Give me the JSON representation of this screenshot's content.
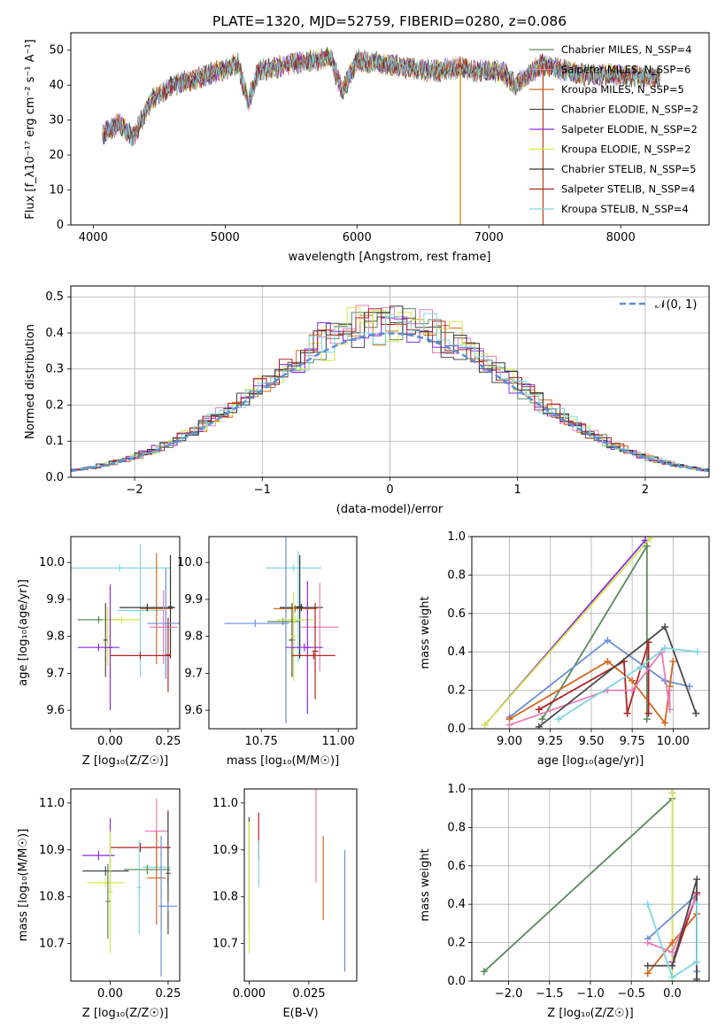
{
  "colors": [
    "#5a8a5a",
    "#e67fb5",
    "#d2691e",
    "#4a4a4a",
    "#8a2be2",
    "#d4e84a",
    "#333333",
    "#b22222",
    "#7fd7e0",
    "#6a8fd8"
  ],
  "chart_data": [
    {
      "id": "spectrum",
      "type": "line",
      "title": "PLATE=1320, MJD=52759, FIBERID=0280, z=0.086",
      "xlabel": "wavelength [Angstrom, rest frame]",
      "ylabel": "Flux [f_λ10⁻¹⁷ erg cm⁻² s⁻¹ A⁻¹]",
      "xlim": [
        3830,
        8670
      ],
      "ylim": [
        0,
        55
      ],
      "xticks": [
        4000,
        5000,
        6000,
        7000,
        8000
      ],
      "yticks": [
        0,
        10,
        20,
        30,
        40,
        50
      ],
      "continuum": [
        [
          4070,
          26
        ],
        [
          4200,
          29
        ],
        [
          4300,
          25
        ],
        [
          4450,
          36
        ],
        [
          4600,
          40
        ],
        [
          4800,
          42
        ],
        [
          4950,
          44
        ],
        [
          5100,
          46
        ],
        [
          5175,
          35
        ],
        [
          5250,
          44
        ],
        [
          5500,
          46
        ],
        [
          5800,
          48
        ],
        [
          5890,
          38
        ],
        [
          6000,
          47
        ],
        [
          6200,
          46
        ],
        [
          6563,
          44
        ],
        [
          6800,
          45
        ],
        [
          6900,
          44
        ],
        [
          7100,
          44
        ],
        [
          7200,
          40
        ],
        [
          7400,
          46
        ],
        [
          7700,
          43
        ],
        [
          8000,
          43
        ],
        [
          8300,
          42
        ]
      ],
      "series": [
        {
          "name": "Chabrier MILES, N_SSP=4",
          "color_idx": 0
        },
        {
          "name": "Salpeter MILES, N_SSP=6",
          "color_idx": 1
        },
        {
          "name": "Kroupa MILES, N_SSP=5",
          "color_idx": 2
        },
        {
          "name": "Chabrier ELODIE, N_SSP=2",
          "color_idx": 3
        },
        {
          "name": "Salpeter ELODIE, N_SSP=2",
          "color_idx": 4
        },
        {
          "name": "Kroupa ELODIE, N_SSP=2",
          "color_idx": 5
        },
        {
          "name": "Chabrier STELIB, N_SSP=5",
          "color_idx": 6
        },
        {
          "name": "Salpeter STELIB, N_SSP=4",
          "color_idx": 7
        },
        {
          "name": "Kroupa STELIB, N_SSP=4",
          "color_idx": 8
        }
      ],
      "legend_loc": "upper right"
    },
    {
      "id": "residuals",
      "type": "line",
      "xlabel": "(data-model)/error",
      "ylabel": "Normed distribution",
      "xlim": [
        -2.5,
        2.5
      ],
      "ylim": [
        0,
        0.53
      ],
      "xticks": [
        -2,
        -1,
        0,
        1,
        2
      ],
      "yticks": [
        0.0,
        0.1,
        0.2,
        0.3,
        0.4,
        0.5
      ],
      "grid": true,
      "legend": "𝒩(0, 1)",
      "legend_loc": "upper right",
      "gaussian": {
        "mean": 0,
        "sigma": 1,
        "style": "dashed",
        "color": "#5b8ed8"
      }
    },
    {
      "id": "age_vs_Z",
      "type": "scatter",
      "xlabel": "Z [log₁₀(Z/Z☉)]",
      "ylabel": "age  [log₁₀(age/yr)]",
      "xlim": [
        -0.17,
        0.3
      ],
      "ylim": [
        9.55,
        10.07
      ],
      "xticks": [
        0.0,
        0.25
      ],
      "yticks": [
        9.6,
        9.7,
        9.8,
        9.9,
        10.0
      ],
      "points": [
        {
          "x": 0.04,
          "y": 9.985,
          "xerr": 0.22,
          "yerr": 0.01,
          "c": 8
        },
        {
          "x": 0.13,
          "y": 9.87,
          "xerr": 0.1,
          "yerr": 0.18,
          "c": 8
        },
        {
          "x": 0.2,
          "y": 9.875,
          "xerr": 0.07,
          "yerr": 0.15,
          "c": 2
        },
        {
          "x": 0.16,
          "y": 9.878,
          "xerr": 0.12,
          "yerr": 0.01,
          "c": 6
        },
        {
          "x": 0.26,
          "y": 9.88,
          "xerr": 0.01,
          "yerr": 0.14,
          "c": 6
        },
        {
          "x": 0.24,
          "y": 9.835,
          "xerr": 0.08,
          "yerr": 0.15,
          "c": 9
        },
        {
          "x": 0.23,
          "y": 9.825,
          "xerr": 0.06,
          "yerr": 0.1,
          "c": 1
        },
        {
          "x": -0.05,
          "y": 9.845,
          "xerr": 0.09,
          "yerr": 0.01,
          "c": 0
        },
        {
          "x": 0.05,
          "y": 9.845,
          "xerr": 0.08,
          "yerr": 0.01,
          "c": 5
        },
        {
          "x": -0.02,
          "y": 9.79,
          "xerr": 0.01,
          "yerr": 0.1,
          "c": 3
        },
        {
          "x": -0.01,
          "y": 9.8,
          "xerr": 0.01,
          "yerr": 0.08,
          "c": 5
        },
        {
          "x": -0.05,
          "y": 9.77,
          "xerr": 0.09,
          "yerr": 0.01,
          "c": 4
        },
        {
          "x": 0.0,
          "y": 9.77,
          "xerr": 0.01,
          "yerr": 0.17,
          "c": 4
        },
        {
          "x": 0.13,
          "y": 9.748,
          "xerr": 0.13,
          "yerr": 0.01,
          "c": 7
        },
        {
          "x": 0.25,
          "y": 9.75,
          "xerr": 0.01,
          "yerr": 0.1,
          "c": 7
        }
      ]
    },
    {
      "id": "age_vs_mass",
      "type": "scatter",
      "xlabel": "mass [log₁₀(M/M☉)]",
      "ylabel": "",
      "xlim": [
        10.58,
        11.06
      ],
      "ylim": [
        9.55,
        10.07
      ],
      "xticks": [
        10.75,
        11.0
      ],
      "yticks": [
        9.6,
        9.7,
        9.8,
        9.9,
        10.0
      ],
      "points": [
        {
          "x": 10.855,
          "y": 9.985,
          "xerr": 0.09,
          "yerr": 0.01,
          "c": 8
        },
        {
          "x": 10.87,
          "y": 9.88,
          "xerr": 0.01,
          "yerr": 0.15,
          "c": 8
        },
        {
          "x": 10.86,
          "y": 9.875,
          "xerr": 0.07,
          "yerr": 0.01,
          "c": 2
        },
        {
          "x": 10.88,
          "y": 9.878,
          "xerr": 0.07,
          "yerr": 0.01,
          "c": 6
        },
        {
          "x": 10.875,
          "y": 9.88,
          "xerr": 0.01,
          "yerr": 0.14,
          "c": 6
        },
        {
          "x": 10.73,
          "y": 9.835,
          "xerr": 0.1,
          "yerr": 0.01,
          "c": 9
        },
        {
          "x": 10.83,
          "y": 9.835,
          "xerr": 0.01,
          "yerr": 0.27,
          "c": 9
        },
        {
          "x": 10.94,
          "y": 9.825,
          "xerr": 0.06,
          "yerr": 0.12,
          "c": 1
        },
        {
          "x": 10.82,
          "y": 9.84,
          "xerr": 0.05,
          "yerr": 0.01,
          "c": 0
        },
        {
          "x": 10.86,
          "y": 9.845,
          "xerr": 0.06,
          "yerr": 0.01,
          "c": 5
        },
        {
          "x": 10.85,
          "y": 9.79,
          "xerr": 0.01,
          "yerr": 0.1,
          "c": 3
        },
        {
          "x": 10.855,
          "y": 9.8,
          "xerr": 0.01,
          "yerr": 0.12,
          "c": 5
        },
        {
          "x": 10.89,
          "y": 9.77,
          "xerr": 0.06,
          "yerr": 0.01,
          "c": 4
        },
        {
          "x": 10.9,
          "y": 9.77,
          "xerr": 0.01,
          "yerr": 0.18,
          "c": 4
        },
        {
          "x": 10.92,
          "y": 9.748,
          "xerr": 0.07,
          "yerr": 0.01,
          "c": 7
        },
        {
          "x": 10.925,
          "y": 9.76,
          "xerr": 0.01,
          "yerr": 0.13,
          "c": 7
        }
      ]
    },
    {
      "id": "weight_vs_age",
      "type": "line",
      "xlabel": "age  [log₁₀(age/yr)]",
      "ylabel": "mass weight",
      "xlim": [
        8.77,
        10.22
      ],
      "ylim": [
        0,
        1.0
      ],
      "xticks": [
        9.0,
        9.25,
        9.5,
        9.75,
        10.0
      ],
      "yticks": [
        0.0,
        0.2,
        0.4,
        0.6,
        0.8,
        1.0
      ],
      "grid": true,
      "series": [
        {
          "c": 4,
          "x": [
            8.85,
            9.83
          ],
          "y": [
            0.02,
            0.98
          ]
        },
        {
          "c": 5,
          "x": [
            8.85,
            9.86
          ],
          "y": [
            0.02,
            0.99
          ]
        },
        {
          "c": 0,
          "x": [
            9.2,
            9.84,
            9.84
          ],
          "y": [
            0.05,
            0.95,
            0.05
          ]
        },
        {
          "c": 9,
          "x": [
            9.0,
            9.6,
            9.95,
            10.1
          ],
          "y": [
            0.06,
            0.46,
            0.25,
            0.22
          ]
        },
        {
          "c": 2,
          "x": [
            9.0,
            9.6,
            9.75,
            9.95,
            10.0,
            9.98
          ],
          "y": [
            0.05,
            0.35,
            0.25,
            0.03,
            0.35,
            0.22
          ]
        },
        {
          "c": 7,
          "x": [
            9.18,
            9.7,
            9.72,
            9.85,
            9.85
          ],
          "y": [
            0.1,
            0.35,
            0.08,
            0.45,
            0.08
          ]
        },
        {
          "c": 1,
          "x": [
            9.0,
            9.6,
            9.75,
            9.93,
            9.98,
            9.98
          ],
          "y": [
            0.02,
            0.2,
            0.2,
            0.4,
            0.1,
            0.2
          ]
        },
        {
          "c": 3,
          "x": [
            9.18,
            9.95,
            10.14
          ],
          "y": [
            0.01,
            0.53,
            0.08
          ]
        },
        {
          "c": 8,
          "x": [
            9.3,
            9.8,
            9.95,
            10.15
          ],
          "y": [
            0.05,
            0.32,
            0.42,
            0.4
          ]
        }
      ]
    },
    {
      "id": "mass_vs_Z",
      "type": "scatter",
      "xlabel": "Z [log₁₀(Z/Z☉)]",
      "ylabel": "mass [log₁₀(M/M☉)]",
      "xlim": [
        -0.17,
        0.3
      ],
      "ylim": [
        10.62,
        11.03
      ],
      "xticks": [
        0.0,
        0.25
      ],
      "yticks": [
        10.7,
        10.8,
        10.9,
        11.0
      ],
      "points": [
        {
          "x": 0.2,
          "y": 10.94,
          "xerr": 0.05,
          "yerr": 0.07,
          "c": 1
        },
        {
          "x": 0.13,
          "y": 10.905,
          "xerr": 0.13,
          "yerr": 0.01,
          "c": 7
        },
        {
          "x": 0.25,
          "y": 10.905,
          "xerr": 0.01,
          "yerr": 0.08,
          "c": 7
        },
        {
          "x": -0.05,
          "y": 10.888,
          "xerr": 0.07,
          "yerr": 0.01,
          "c": 4
        },
        {
          "x": 0.0,
          "y": 10.888,
          "xerr": 0.01,
          "yerr": 0.08,
          "c": 4
        },
        {
          "x": 0.2,
          "y": 10.863,
          "xerr": 0.06,
          "yerr": 0.01,
          "c": 8
        },
        {
          "x": 0.16,
          "y": 10.858,
          "xerr": 0.1,
          "yerr": 0.01,
          "c": 0
        },
        {
          "x": -0.02,
          "y": 10.855,
          "xerr": 0.1,
          "yerr": 0.01,
          "c": 3
        },
        {
          "x": 0.25,
          "y": 10.85,
          "xerr": 0.01,
          "yerr": 0.13,
          "c": 3
        },
        {
          "x": 0.2,
          "y": 10.84,
          "xerr": 0.04,
          "yerr": 0.1,
          "c": 2
        },
        {
          "x": 0.125,
          "y": 10.82,
          "xerr": 0.01,
          "yerr": 0.1,
          "c": 8
        },
        {
          "x": -0.02,
          "y": 10.83,
          "xerr": 0.08,
          "yerr": 0.01,
          "c": 5
        },
        {
          "x": 0.0,
          "y": 10.81,
          "xerr": 0.01,
          "yerr": 0.13,
          "c": 5
        },
        {
          "x": 0.25,
          "y": 10.78,
          "xerr": 0.04,
          "yerr": 0.01,
          "c": 9
        },
        {
          "x": 0.22,
          "y": 10.78,
          "xerr": 0.01,
          "yerr": 0.15,
          "c": 9
        },
        {
          "x": -0.01,
          "y": 10.79,
          "xerr": 0.01,
          "yerr": 0.08,
          "c": 0
        }
      ]
    },
    {
      "id": "mass_vs_EBV",
      "type": "scatter",
      "xlabel": "E(B-V)",
      "ylabel": "",
      "xlim": [
        -0.002,
        0.045
      ],
      "ylim": [
        10.62,
        11.03
      ],
      "xticks": [
        0.0,
        0.025
      ],
      "xticklabels": [
        "0.000",
        "0.025"
      ],
      "yticks": [
        10.7,
        10.8,
        10.9,
        11.0
      ],
      "points": [
        {
          "x": 0.004,
          "y": 10.93,
          "xerr": 0.0,
          "yerr": 0.05,
          "c": 7
        },
        {
          "x": 0.004,
          "y": 10.87,
          "xerr": 0.0,
          "yerr": 0.05,
          "c": 8
        },
        {
          "x": 0.0,
          "y": 10.85,
          "xerr": 0.0,
          "yerr": 0.12,
          "c": 3
        },
        {
          "x": 0.0,
          "y": 10.82,
          "xerr": 0.0,
          "yerr": 0.14,
          "c": 5
        },
        {
          "x": 0.028,
          "y": 10.95,
          "xerr": 0.0,
          "yerr": 0.12,
          "c": 1
        },
        {
          "x": 0.031,
          "y": 10.84,
          "xerr": 0.0,
          "yerr": 0.09,
          "c": 2
        },
        {
          "x": 0.04,
          "y": 10.77,
          "xerr": 0.0,
          "yerr": 0.13,
          "c": 9
        }
      ]
    },
    {
      "id": "weight_vs_Z",
      "type": "line",
      "xlabel": "Z [log₁₀(Z/Z☉)]",
      "ylabel": "mass weight",
      "xlim": [
        -2.45,
        0.45
      ],
      "ylim": [
        0,
        1.0
      ],
      "xticks": [
        -2.0,
        -1.5,
        -1.0,
        -0.5,
        0.0
      ],
      "yticks": [
        0.0,
        0.2,
        0.4,
        0.6,
        0.8,
        1.0
      ],
      "grid": true,
      "series": [
        {
          "c": 0,
          "x": [
            -2.3,
            0.0
          ],
          "y": [
            0.05,
            0.95
          ]
        },
        {
          "c": 4,
          "x": [
            0.0,
            0.0,
            0.3
          ],
          "y": [
            0.98,
            0.1,
            0.45
          ]
        },
        {
          "c": 5,
          "x": [
            0.0,
            0.0
          ],
          "y": [
            0.0,
            0.98
          ]
        },
        {
          "c": 9,
          "x": [
            -0.3,
            0.3,
            0.3
          ],
          "y": [
            0.22,
            0.45,
            0.05
          ]
        },
        {
          "c": 2,
          "x": [
            -0.3,
            0.0,
            0.3,
            0.3
          ],
          "y": [
            0.04,
            0.2,
            0.35,
            0.0
          ]
        },
        {
          "c": 7,
          "x": [
            0.0,
            0.3,
            0.3
          ],
          "y": [
            0.08,
            0.46,
            0.1
          ]
        },
        {
          "c": 1,
          "x": [
            -0.3,
            0.0,
            0.3
          ],
          "y": [
            0.2,
            0.15,
            0.45
          ]
        },
        {
          "c": 3,
          "x": [
            -0.3,
            0.0,
            0.3,
            0.3
          ],
          "y": [
            0.08,
            0.08,
            0.53,
            0.01
          ]
        },
        {
          "c": 8,
          "x": [
            -0.3,
            0.0,
            0.3,
            0.3
          ],
          "y": [
            0.4,
            0.02,
            0.1,
            0.4
          ]
        }
      ]
    }
  ]
}
